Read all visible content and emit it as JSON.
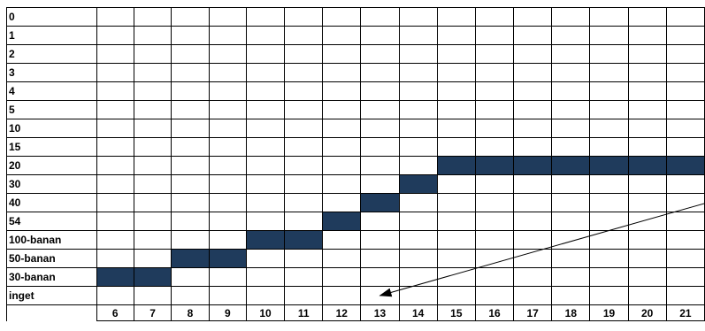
{
  "chart_data": {
    "type": "heatmap",
    "rows": [
      "0",
      "1",
      "2",
      "3",
      "4",
      "5",
      "10",
      "15",
      "20",
      "30",
      "40",
      "54",
      "100-banan",
      "50-banan",
      "30-banan",
      "inget"
    ],
    "columns": [
      "6",
      "7",
      "8",
      "9",
      "10",
      "11",
      "12",
      "13",
      "14",
      "15",
      "16",
      "17",
      "18",
      "19",
      "20",
      "21"
    ],
    "cells": [
      {
        "row": "30-banan",
        "col": "6"
      },
      {
        "row": "30-banan",
        "col": "7"
      },
      {
        "row": "50-banan",
        "col": "8"
      },
      {
        "row": "50-banan",
        "col": "9"
      },
      {
        "row": "100-banan",
        "col": "10"
      },
      {
        "row": "100-banan",
        "col": "11"
      },
      {
        "row": "54",
        "col": "12"
      },
      {
        "row": "40",
        "col": "13"
      },
      {
        "row": "30",
        "col": "14"
      },
      {
        "row": "20",
        "col": "15"
      },
      {
        "row": "20",
        "col": "16"
      },
      {
        "row": "20",
        "col": "17"
      },
      {
        "row": "20",
        "col": "18"
      },
      {
        "row": "20",
        "col": "19"
      },
      {
        "row": "20",
        "col": "20"
      },
      {
        "row": "20",
        "col": "21"
      }
    ],
    "fill_color": "#1f3b5c",
    "grid": true,
    "arrow": {
      "from": {
        "row": "40",
        "col": "21"
      },
      "to": {
        "row": "inget",
        "col": "13"
      }
    }
  }
}
